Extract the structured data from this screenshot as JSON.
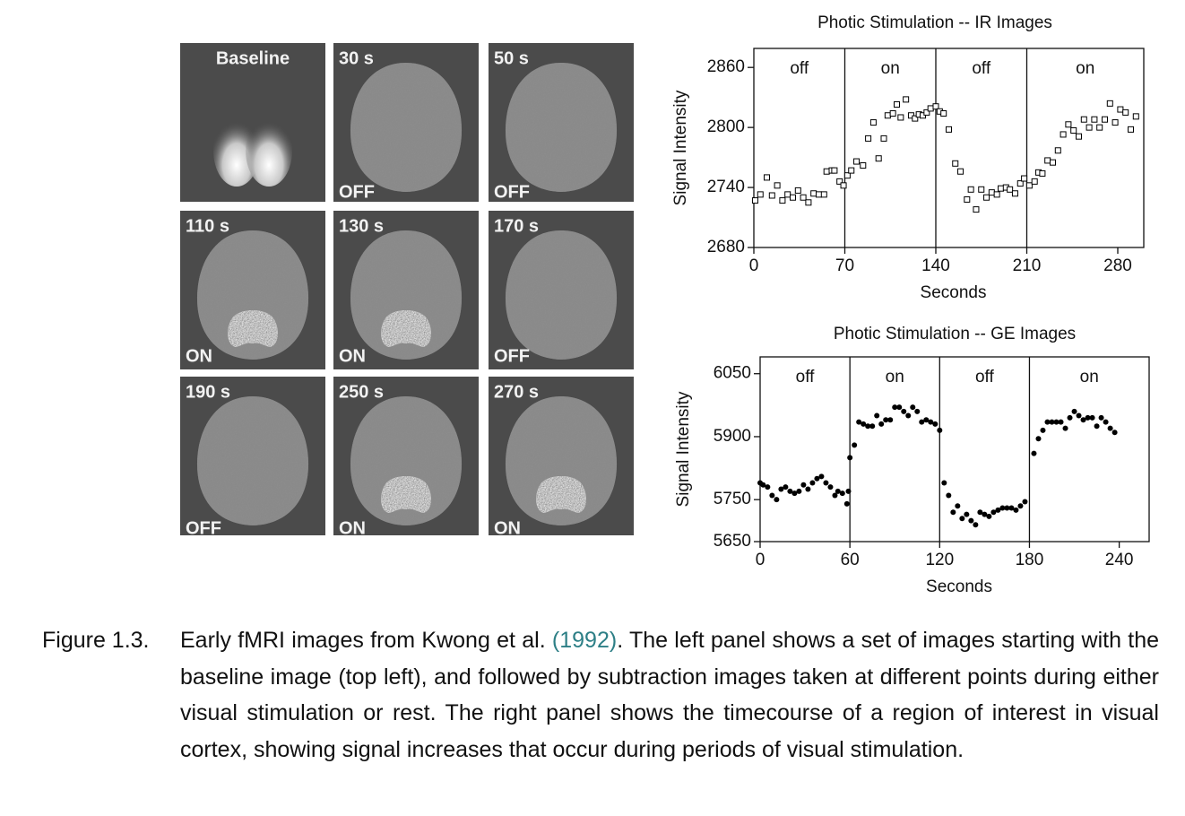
{
  "chart_data": [
    {
      "type": "scatter",
      "title": "Photic Stimulation -- IR Images",
      "xlabel": "Seconds",
      "ylabel": "Signal Intensity",
      "marker": "square-open",
      "color": "#000000",
      "x": [
        1,
        5,
        10,
        14,
        18,
        22,
        26,
        30,
        34,
        38,
        42,
        46,
        50,
        54,
        56,
        60,
        62,
        66,
        69,
        72,
        75,
        79,
        84,
        88,
        92,
        96,
        100,
        103,
        107,
        110,
        113,
        117,
        121,
        124,
        127,
        130,
        133,
        136,
        140,
        143,
        146,
        150,
        155,
        159,
        164,
        167,
        171,
        175,
        179,
        183,
        187,
        190,
        194,
        197,
        201,
        205,
        208,
        212,
        216,
        219,
        222,
        226,
        230,
        234,
        238,
        242,
        246,
        250,
        254,
        258,
        262,
        266,
        270,
        274,
        278,
        282,
        286,
        290,
        294
      ],
      "values": [
        2727,
        2733,
        2750,
        2732,
        2742,
        2727,
        2733,
        2730,
        2737,
        2730,
        2725,
        2734,
        2733,
        2733,
        2756,
        2757,
        2757,
        2746,
        2742,
        2752,
        2757,
        2766,
        2762,
        2789,
        2805,
        2769,
        2789,
        2812,
        2814,
        2823,
        2810,
        2828,
        2812,
        2809,
        2813,
        2812,
        2815,
        2819,
        2821,
        2816,
        2814,
        2798,
        2764,
        2756,
        2728,
        2738,
        2718,
        2738,
        2730,
        2735,
        2733,
        2739,
        2740,
        2738,
        2734,
        2744,
        2749,
        2742,
        2746,
        2755,
        2754,
        2767,
        2765,
        2777,
        2793,
        2803,
        2797,
        2791,
        2808,
        2800,
        2808,
        2800,
        2808,
        2824,
        2805,
        2818,
        2815,
        2798,
        2811
      ],
      "xlim": [
        0,
        300
      ],
      "ylim": [
        2680,
        2879
      ],
      "xticks": [
        0,
        70,
        140,
        210,
        280
      ],
      "yticks": [
        2680,
        2740,
        2800,
        2860
      ],
      "period_boundaries": [
        70,
        140,
        210
      ],
      "period_labels": [
        "off",
        "on",
        "off",
        "on"
      ]
    },
    {
      "type": "scatter",
      "title": "Photic Stimulation -- GE Images",
      "xlabel": "Seconds",
      "ylabel": "Signal Intensity",
      "marker": "circle",
      "color": "#000000",
      "x": [
        0,
        2,
        5,
        8,
        11,
        14,
        17,
        20,
        23,
        26,
        29,
        32,
        35,
        38,
        41,
        44,
        47,
        50,
        52,
        55,
        58,
        59,
        60,
        63,
        66,
        69,
        72,
        75,
        78,
        81,
        84,
        87,
        90,
        93,
        96,
        99,
        102,
        105,
        108,
        111,
        114,
        117,
        120,
        123,
        126,
        129,
        132,
        135,
        138,
        141,
        144,
        147,
        150,
        153,
        156,
        159,
        162,
        165,
        168,
        171,
        174,
        177,
        183,
        186,
        189,
        192,
        195,
        198,
        201,
        204,
        207,
        210,
        213,
        216,
        219,
        222,
        225,
        228,
        231,
        234,
        237
      ],
      "values": [
        5790,
        5785,
        5780,
        5760,
        5750,
        5775,
        5780,
        5770,
        5765,
        5770,
        5785,
        5775,
        5790,
        5800,
        5805,
        5790,
        5780,
        5760,
        5770,
        5765,
        5740,
        5770,
        5850,
        5880,
        5935,
        5930,
        5925,
        5925,
        5950,
        5930,
        5940,
        5940,
        5970,
        5970,
        5960,
        5950,
        5970,
        5960,
        5935,
        5940,
        5935,
        5930,
        5915,
        5790,
        5760,
        5720,
        5735,
        5705,
        5715,
        5700,
        5690,
        5720,
        5715,
        5710,
        5720,
        5725,
        5730,
        5730,
        5730,
        5725,
        5735,
        5745,
        5860,
        5895,
        5915,
        5935,
        5935,
        5935,
        5935,
        5920,
        5945,
        5960,
        5950,
        5940,
        5945,
        5945,
        5925,
        5945,
        5935,
        5920,
        5910
      ],
      "xlim": [
        0,
        260
      ],
      "ylim": [
        5650,
        6090
      ],
      "xticks": [
        0,
        60,
        120,
        180,
        240
      ],
      "yticks": [
        5650,
        5750,
        5900,
        6050
      ],
      "period_boundaries": [
        60,
        120,
        180
      ],
      "period_labels": [
        "off",
        "on",
        "off",
        "on"
      ]
    }
  ],
  "image_panels": [
    {
      "time": "Baseline"
    },
    {
      "time": "30 s",
      "state": "OFF"
    },
    {
      "time": "50 s",
      "state": "OFF"
    },
    {
      "time": "110 s",
      "state": "ON"
    },
    {
      "time": "130 s",
      "state": "ON"
    },
    {
      "time": "170 s",
      "state": "OFF"
    },
    {
      "time": "190 s",
      "state": "OFF"
    },
    {
      "time": "250 s",
      "state": "ON"
    },
    {
      "time": "270 s",
      "state": "ON"
    }
  ],
  "caption": {
    "label": "Figure 1.3.",
    "text_before": "Early fMRI images from Kwong et al. ",
    "citation": "(1992)",
    "text_after": ". The left panel shows a set of images starting with the baseline image (top left), and followed by subtraction images taken at different points during either visual stimulation or rest. The right panel shows the timecourse of a region of interest in visual cortex, showing signal increases that occur during periods of visual stimulation."
  }
}
